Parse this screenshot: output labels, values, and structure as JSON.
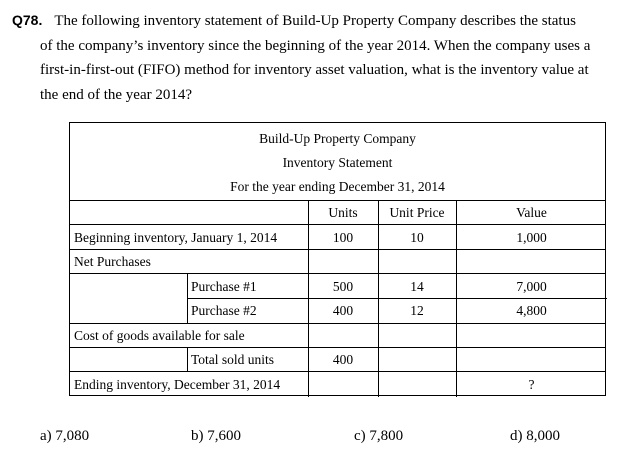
{
  "question": {
    "label": "Q78.",
    "lines": [
      "The following inventory statement of Build-Up Property Company describes the status",
      "of the company’s inventory since the beginning of the year 2014. When the company uses a",
      "first-in-first-out (FIFO) method for inventory asset valuation, what is the inventory value at",
      "the end of the year 2014?"
    ]
  },
  "statement": {
    "company": "Build-Up Property Company",
    "title": "Inventory Statement",
    "period": "For the year ending December 31, 2014",
    "columns": {
      "units": "Units",
      "unit_price": "Unit Price",
      "value": "Value"
    },
    "beginning": {
      "label": "Beginning inventory, January 1, 2014",
      "units": "100",
      "unit_price": "10",
      "value": "1,000"
    },
    "net_purchases": {
      "label": "Net Purchases"
    },
    "purchase1": {
      "label": "Purchase #1",
      "units": "500",
      "unit_price": "14",
      "value": "7,000"
    },
    "purchase2": {
      "label": "Purchase #2",
      "units": "400",
      "unit_price": "12",
      "value": "4,800"
    },
    "cogs": {
      "label": "Cost of goods available for sale"
    },
    "sold": {
      "label": "Total sold units",
      "units": "400"
    },
    "ending": {
      "label": "Ending inventory, December 31, 2014",
      "value": "?"
    }
  },
  "answers": {
    "a": "a) 7,080",
    "b": "b) 7,600",
    "c": "c) 7,800",
    "d": "d) 8,000"
  }
}
